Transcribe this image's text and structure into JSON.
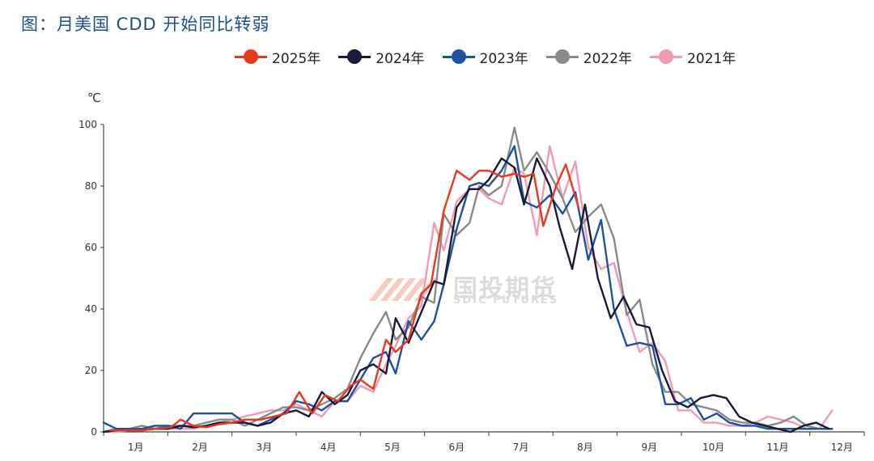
{
  "page": {
    "title": "图：月美国 CDD 开始同比转弱"
  },
  "watermark": {
    "name": "国投期货",
    "sub": "SDIC FUTURES"
  },
  "chart_data": {
    "type": "line",
    "title": "图：月美国 CDD 开始同比转弱",
    "ylabel": "℃",
    "ylim": [
      0,
      100
    ],
    "yticks": [
      0,
      20,
      40,
      60,
      80,
      100
    ],
    "xlim": [
      1,
      12.85
    ],
    "xticks": [
      {
        "label": "1月",
        "x": 1.5
      },
      {
        "label": "2月",
        "x": 2.5
      },
      {
        "label": "3月",
        "x": 3.5
      },
      {
        "label": "4月",
        "x": 4.5
      },
      {
        "label": "5月",
        "x": 5.5
      },
      {
        "label": "6月",
        "x": 6.5
      },
      {
        "label": "7月",
        "x": 7.5
      },
      {
        "label": "8月",
        "x": 8.5
      },
      {
        "label": "9月",
        "x": 9.5
      },
      {
        "label": "10月",
        "x": 10.5
      },
      {
        "label": "11月",
        "x": 11.5
      },
      {
        "label": "12月",
        "x": 12.5
      }
    ],
    "grid": false,
    "legend_position": "top",
    "series": [
      {
        "name": "2025年",
        "color": "#e8391f",
        "points": [
          [
            1.1,
            0.5
          ],
          [
            1.35,
            0.5
          ],
          [
            1.6,
            0.5
          ],
          [
            1.8,
            1
          ],
          [
            2.05,
            1.5
          ],
          [
            2.2,
            4
          ],
          [
            2.4,
            2
          ],
          [
            2.6,
            1.5
          ],
          [
            2.8,
            2.5
          ],
          [
            3.0,
            3
          ],
          [
            3.2,
            4
          ],
          [
            3.45,
            4
          ],
          [
            3.65,
            5
          ],
          [
            3.85,
            6
          ],
          [
            4.05,
            13
          ],
          [
            4.25,
            6
          ],
          [
            4.45,
            12
          ],
          [
            4.65,
            10
          ],
          [
            4.85,
            15
          ],
          [
            5.0,
            17
          ],
          [
            5.2,
            14
          ],
          [
            5.4,
            30
          ],
          [
            5.55,
            26
          ],
          [
            5.75,
            30
          ],
          [
            5.95,
            45
          ],
          [
            6.1,
            48
          ],
          [
            6.3,
            72
          ],
          [
            6.5,
            85
          ],
          [
            6.7,
            82
          ],
          [
            6.85,
            85
          ],
          [
            7.0,
            85
          ],
          [
            7.2,
            83
          ],
          [
            7.4,
            84
          ],
          [
            7.55,
            83
          ],
          [
            7.7,
            84
          ],
          [
            7.85,
            67
          ],
          [
            8.05,
            80
          ],
          [
            8.2,
            87
          ],
          [
            8.4,
            73
          ],
          [
            8.55,
            null
          ]
        ]
      },
      {
        "name": "2024年",
        "color": "#1a1a3a",
        "points": [
          [
            1.0,
            0
          ],
          [
            1.2,
            0.5
          ],
          [
            1.4,
            0.5
          ],
          [
            1.6,
            0.5
          ],
          [
            1.8,
            1
          ],
          [
            2.0,
            1
          ],
          [
            2.2,
            2
          ],
          [
            2.4,
            1.5
          ],
          [
            2.6,
            2
          ],
          [
            2.8,
            3
          ],
          [
            3.0,
            3
          ],
          [
            3.2,
            3
          ],
          [
            3.4,
            2
          ],
          [
            3.6,
            3
          ],
          [
            3.8,
            6
          ],
          [
            4.0,
            7
          ],
          [
            4.2,
            5
          ],
          [
            4.4,
            13
          ],
          [
            4.6,
            9
          ],
          [
            4.8,
            12
          ],
          [
            5.0,
            20
          ],
          [
            5.2,
            22
          ],
          [
            5.4,
            19
          ],
          [
            5.55,
            37
          ],
          [
            5.75,
            29
          ],
          [
            5.95,
            39
          ],
          [
            6.15,
            49
          ],
          [
            6.3,
            48
          ],
          [
            6.5,
            73
          ],
          [
            6.7,
            79
          ],
          [
            6.85,
            79
          ],
          [
            7.0,
            82
          ],
          [
            7.2,
            89
          ],
          [
            7.4,
            86
          ],
          [
            7.55,
            74
          ],
          [
            7.75,
            89
          ],
          [
            7.95,
            80
          ],
          [
            8.1,
            67
          ],
          [
            8.3,
            53
          ],
          [
            8.5,
            74
          ],
          [
            8.7,
            50
          ],
          [
            8.9,
            37
          ],
          [
            9.1,
            44
          ],
          [
            9.3,
            35
          ],
          [
            9.5,
            34
          ],
          [
            9.7,
            20
          ],
          [
            9.9,
            10
          ],
          [
            10.1,
            8
          ],
          [
            10.3,
            11
          ],
          [
            10.5,
            12
          ],
          [
            10.7,
            11
          ],
          [
            10.9,
            5
          ],
          [
            11.1,
            3
          ],
          [
            11.3,
            2
          ],
          [
            11.5,
            1
          ],
          [
            11.7,
            0
          ],
          [
            11.9,
            2
          ],
          [
            12.1,
            3
          ],
          [
            12.3,
            1
          ]
        ]
      },
      {
        "name": "2023年",
        "color": "#1d52a3",
        "points": [
          [
            1.0,
            3
          ],
          [
            1.2,
            1
          ],
          [
            1.4,
            1
          ],
          [
            1.6,
            1
          ],
          [
            1.8,
            2
          ],
          [
            2.0,
            2
          ],
          [
            2.2,
            1
          ],
          [
            2.4,
            6
          ],
          [
            2.6,
            6
          ],
          [
            2.8,
            6
          ],
          [
            3.0,
            6
          ],
          [
            3.2,
            3
          ],
          [
            3.4,
            2
          ],
          [
            3.6,
            4
          ],
          [
            3.8,
            6
          ],
          [
            4.0,
            10
          ],
          [
            4.2,
            9
          ],
          [
            4.4,
            7
          ],
          [
            4.6,
            10
          ],
          [
            4.8,
            10
          ],
          [
            5.0,
            17
          ],
          [
            5.2,
            24
          ],
          [
            5.4,
            26
          ],
          [
            5.55,
            19
          ],
          [
            5.75,
            36
          ],
          [
            5.95,
            30
          ],
          [
            6.15,
            36
          ],
          [
            6.3,
            48
          ],
          [
            6.5,
            66
          ],
          [
            6.7,
            80
          ],
          [
            6.85,
            81
          ],
          [
            7.0,
            80
          ],
          [
            7.2,
            85
          ],
          [
            7.4,
            93
          ],
          [
            7.55,
            75
          ],
          [
            7.75,
            73
          ],
          [
            7.95,
            77
          ],
          [
            8.15,
            71
          ],
          [
            8.35,
            78
          ],
          [
            8.55,
            56
          ],
          [
            8.75,
            69
          ],
          [
            8.95,
            40
          ],
          [
            9.15,
            28
          ],
          [
            9.35,
            29
          ],
          [
            9.55,
            28
          ],
          [
            9.75,
            9
          ],
          [
            9.95,
            9
          ],
          [
            10.15,
            11
          ],
          [
            10.35,
            4
          ],
          [
            10.55,
            6
          ],
          [
            10.75,
            3
          ],
          [
            10.95,
            2
          ],
          [
            11.15,
            2
          ],
          [
            11.35,
            1
          ],
          [
            11.55,
            1
          ],
          [
            11.75,
            1
          ],
          [
            11.95,
            1
          ],
          [
            12.15,
            1
          ],
          [
            12.35,
            1
          ]
        ]
      },
      {
        "name": "2022年",
        "color": "#8a8a8a",
        "points": [
          [
            1.0,
            0
          ],
          [
            1.2,
            1
          ],
          [
            1.4,
            1
          ],
          [
            1.6,
            2
          ],
          [
            1.8,
            1
          ],
          [
            2.0,
            2
          ],
          [
            2.2,
            2
          ],
          [
            2.4,
            2
          ],
          [
            2.6,
            3
          ],
          [
            2.8,
            4
          ],
          [
            3.0,
            4
          ],
          [
            3.2,
            2
          ],
          [
            3.4,
            4
          ],
          [
            3.6,
            6
          ],
          [
            3.8,
            8
          ],
          [
            4.0,
            8
          ],
          [
            4.2,
            7
          ],
          [
            4.4,
            9
          ],
          [
            4.6,
            11
          ],
          [
            4.8,
            14
          ],
          [
            5.0,
            24
          ],
          [
            5.2,
            32
          ],
          [
            5.4,
            39
          ],
          [
            5.55,
            30
          ],
          [
            5.75,
            34
          ],
          [
            5.95,
            44
          ],
          [
            6.15,
            42
          ],
          [
            6.3,
            71
          ],
          [
            6.5,
            64
          ],
          [
            6.7,
            68
          ],
          [
            6.85,
            80
          ],
          [
            7.0,
            77
          ],
          [
            7.2,
            80
          ],
          [
            7.4,
            99
          ],
          [
            7.55,
            85
          ],
          [
            7.75,
            91
          ],
          [
            7.95,
            84
          ],
          [
            8.15,
            76
          ],
          [
            8.35,
            65
          ],
          [
            8.55,
            70
          ],
          [
            8.75,
            74
          ],
          [
            8.95,
            63
          ],
          [
            9.15,
            38
          ],
          [
            9.35,
            43
          ],
          [
            9.55,
            22
          ],
          [
            9.75,
            13
          ],
          [
            9.95,
            13
          ],
          [
            10.15,
            9
          ],
          [
            10.35,
            8
          ],
          [
            10.55,
            7
          ],
          [
            10.75,
            4
          ],
          [
            10.95,
            3
          ],
          [
            11.15,
            3
          ],
          [
            11.35,
            2
          ],
          [
            11.55,
            3
          ],
          [
            11.75,
            5
          ],
          [
            11.95,
            2
          ],
          [
            12.15,
            1
          ],
          [
            12.35,
            1
          ]
        ]
      },
      {
        "name": "2021年",
        "color": "#f09bb4",
        "points": [
          [
            1.0,
            0
          ],
          [
            1.2,
            0
          ],
          [
            1.4,
            0.5
          ],
          [
            1.6,
            0.5
          ],
          [
            1.8,
            1
          ],
          [
            2.0,
            1
          ],
          [
            2.2,
            1
          ],
          [
            2.4,
            1
          ],
          [
            2.6,
            2
          ],
          [
            2.8,
            3
          ],
          [
            3.0,
            4
          ],
          [
            3.2,
            5
          ],
          [
            3.4,
            6
          ],
          [
            3.6,
            7
          ],
          [
            3.8,
            7
          ],
          [
            4.0,
            9
          ],
          [
            4.2,
            7
          ],
          [
            4.4,
            5
          ],
          [
            4.6,
            10
          ],
          [
            4.8,
            10
          ],
          [
            5.0,
            15
          ],
          [
            5.2,
            13
          ],
          [
            5.4,
            22
          ],
          [
            5.55,
            28
          ],
          [
            5.75,
            37
          ],
          [
            5.95,
            41
          ],
          [
            6.15,
            68
          ],
          [
            6.3,
            59
          ],
          [
            6.5,
            75
          ],
          [
            6.7,
            79
          ],
          [
            6.85,
            79
          ],
          [
            7.0,
            76
          ],
          [
            7.2,
            74
          ],
          [
            7.4,
            86
          ],
          [
            7.55,
            84
          ],
          [
            7.75,
            64
          ],
          [
            7.95,
            93
          ],
          [
            8.15,
            76
          ],
          [
            8.35,
            88
          ],
          [
            8.55,
            60
          ],
          [
            8.75,
            53
          ],
          [
            8.95,
            55
          ],
          [
            9.15,
            39
          ],
          [
            9.35,
            26
          ],
          [
            9.55,
            29
          ],
          [
            9.75,
            23
          ],
          [
            9.95,
            7
          ],
          [
            10.15,
            7
          ],
          [
            10.35,
            3
          ],
          [
            10.55,
            3
          ],
          [
            10.75,
            2
          ],
          [
            10.95,
            2
          ],
          [
            11.15,
            3
          ],
          [
            11.35,
            5
          ],
          [
            11.55,
            4
          ],
          [
            11.75,
            3
          ],
          [
            11.95,
            1
          ],
          [
            12.15,
            1
          ],
          [
            12.35,
            7
          ]
        ]
      }
    ]
  }
}
